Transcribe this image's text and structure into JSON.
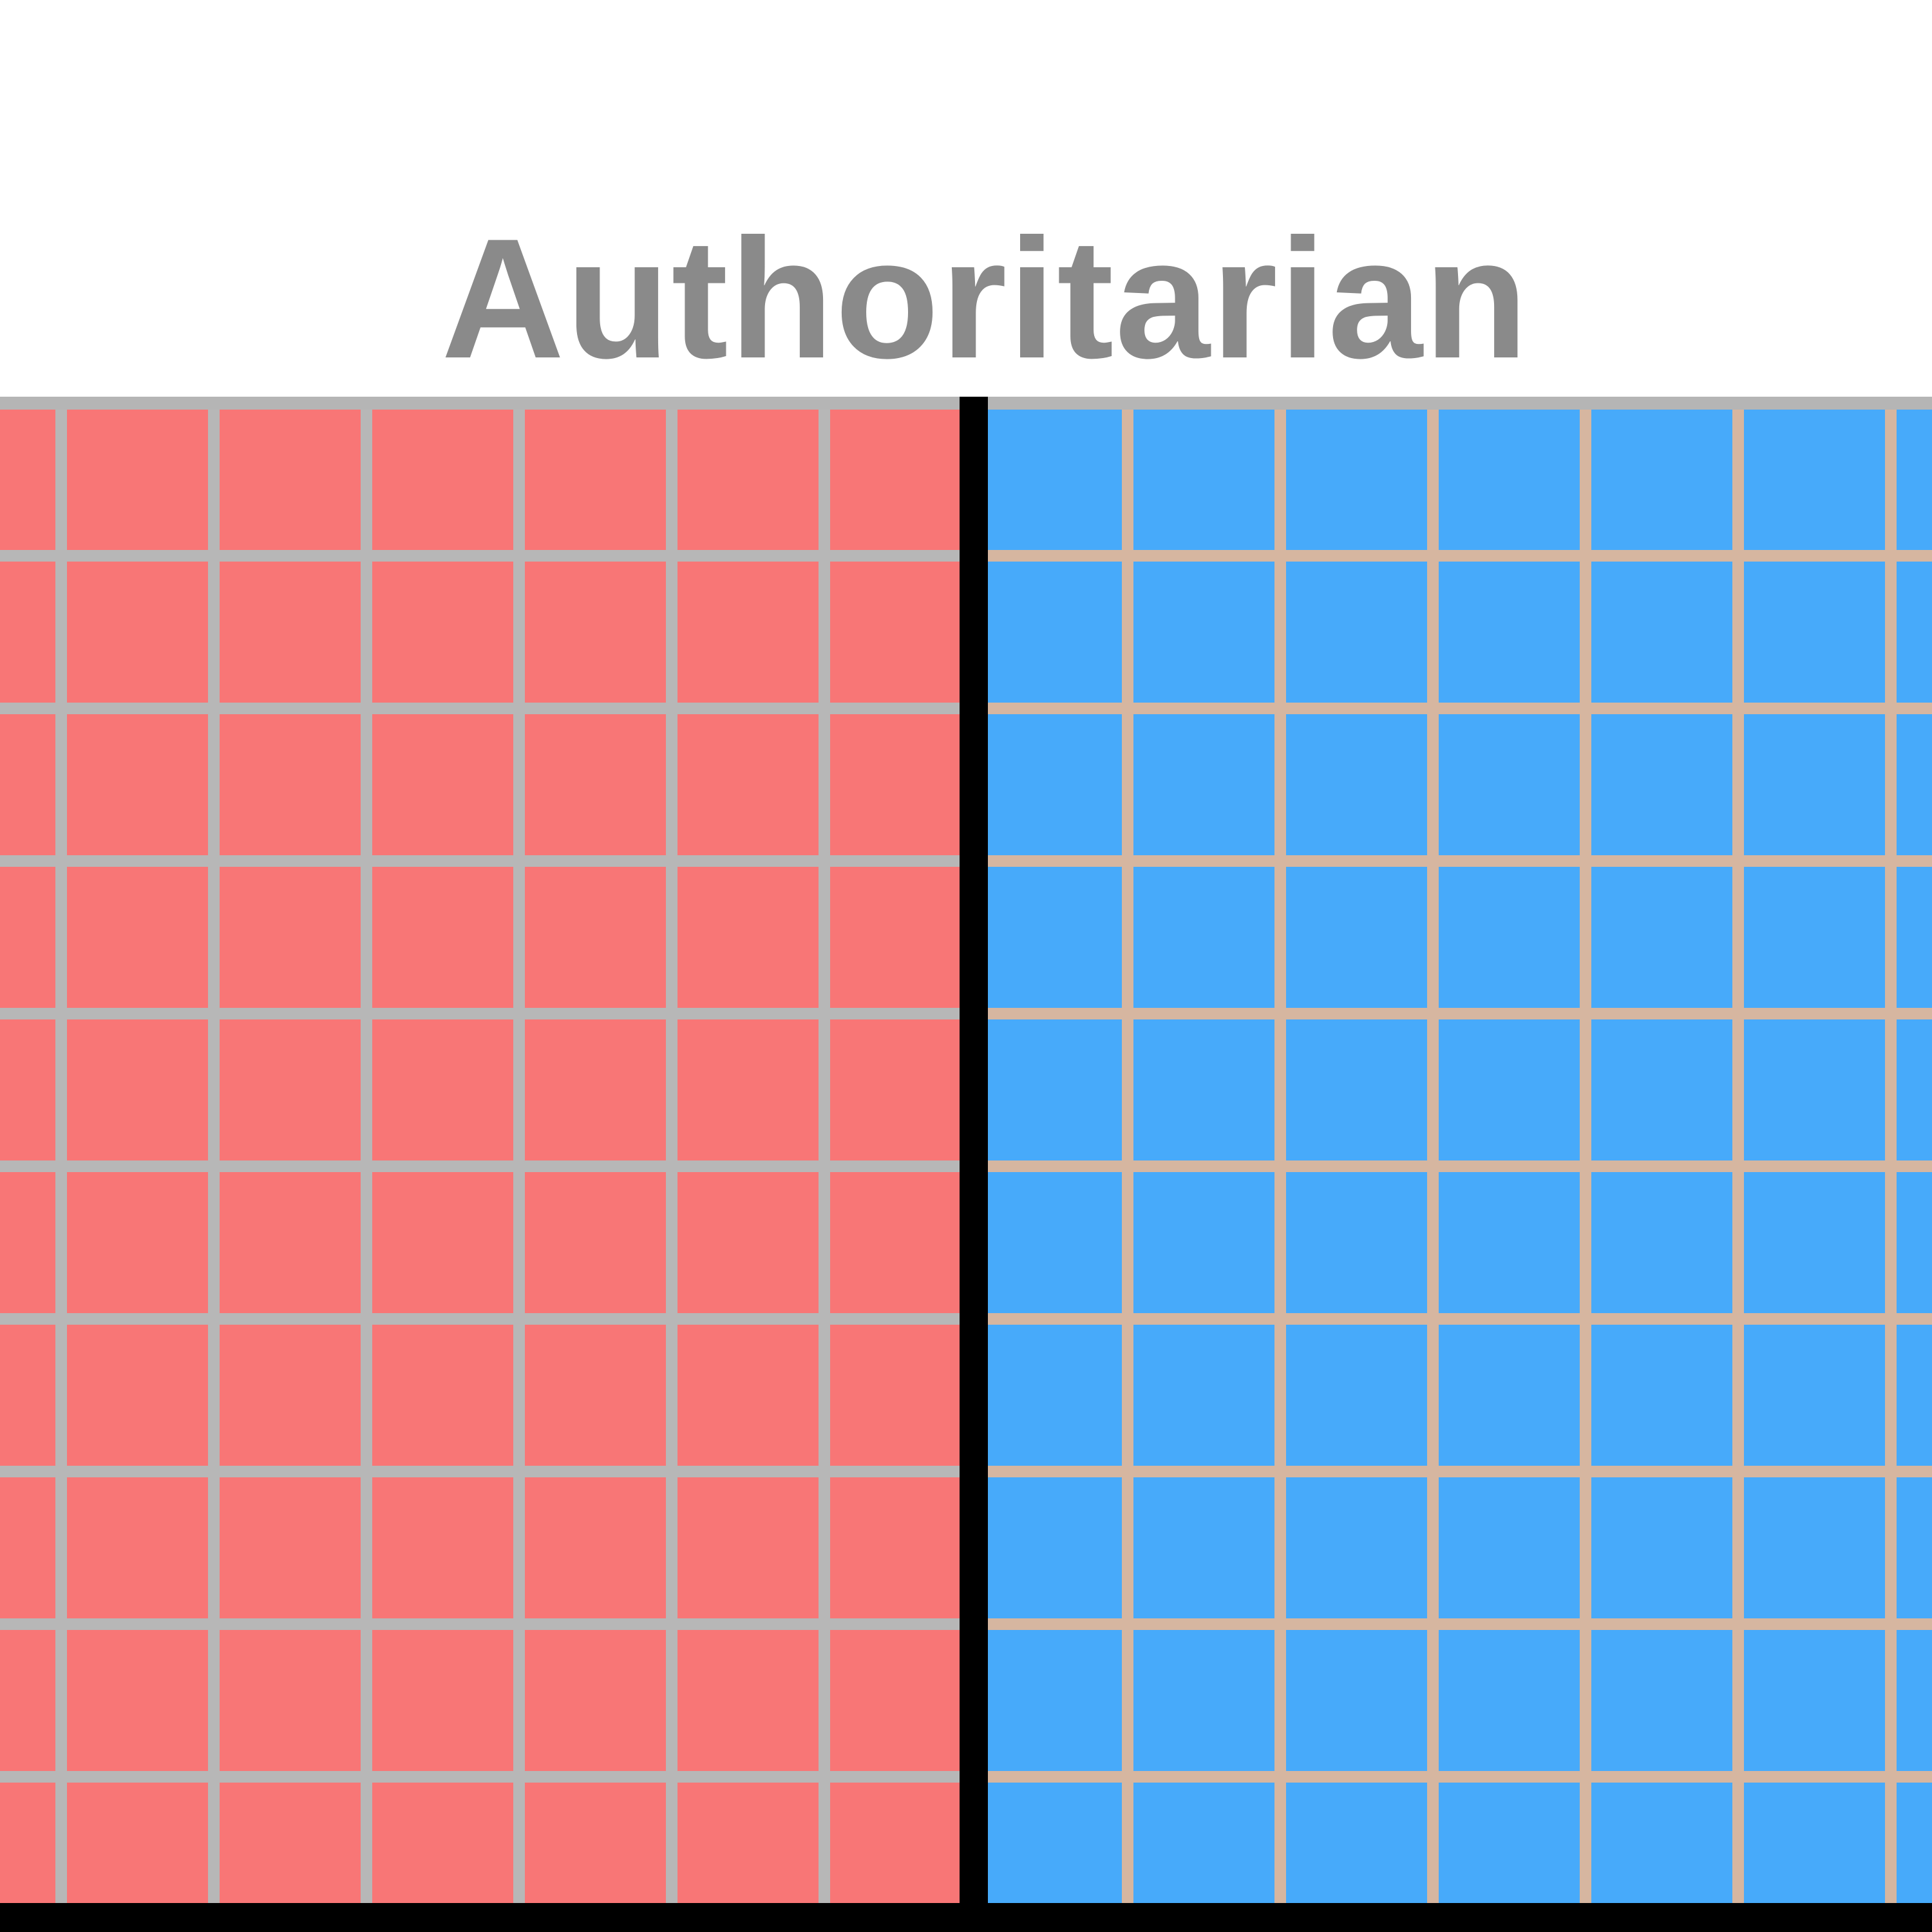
{
  "compass": {
    "top_label": "Authoritarian",
    "colors": {
      "background": "#ffffff",
      "label": "#8a8a8a",
      "left_quadrant": "#f87676",
      "right_quadrant": "#47aafa",
      "left_grid_line": "#b7b7b7",
      "right_grid_line": "#d6b6a0",
      "top_border": "#b5b5b5",
      "axis": "#000000"
    },
    "quadrants": [
      {
        "name": "authoritarian-left",
        "color_key": "left_quadrant",
        "grid_key": "left_grid_line"
      },
      {
        "name": "authoritarian-right",
        "color_key": "right_quadrant",
        "grid_key": "right_grid_line"
      }
    ]
  }
}
